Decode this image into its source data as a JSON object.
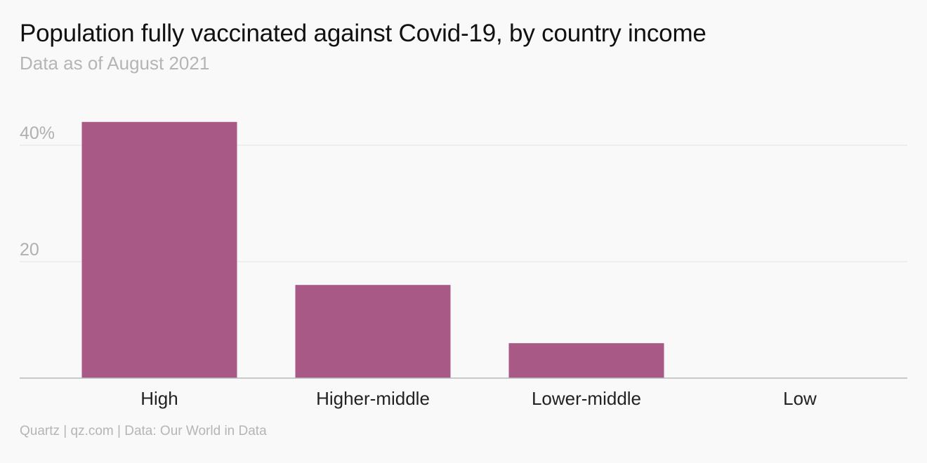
{
  "header": {
    "title": "Population fully vaccinated against Covid-19, by country income",
    "subtitle": "Data as of August 2021"
  },
  "footer": {
    "source": "Quartz | qz.com | Data: Our World in Data"
  },
  "colors": {
    "bar": "#a85985",
    "grid": "#e2e2e2",
    "axis": "#b9b9b9"
  },
  "chart_data": {
    "type": "bar",
    "categories": [
      "High",
      "Higher-middle",
      "Lower-middle",
      "Low"
    ],
    "values": [
      44,
      16,
      6,
      0
    ],
    "ylim": [
      0,
      45
    ],
    "yticks": [
      {
        "value": 20,
        "label": "20"
      },
      {
        "value": 40,
        "label": "40%"
      }
    ],
    "grid": true,
    "legend": "none"
  }
}
